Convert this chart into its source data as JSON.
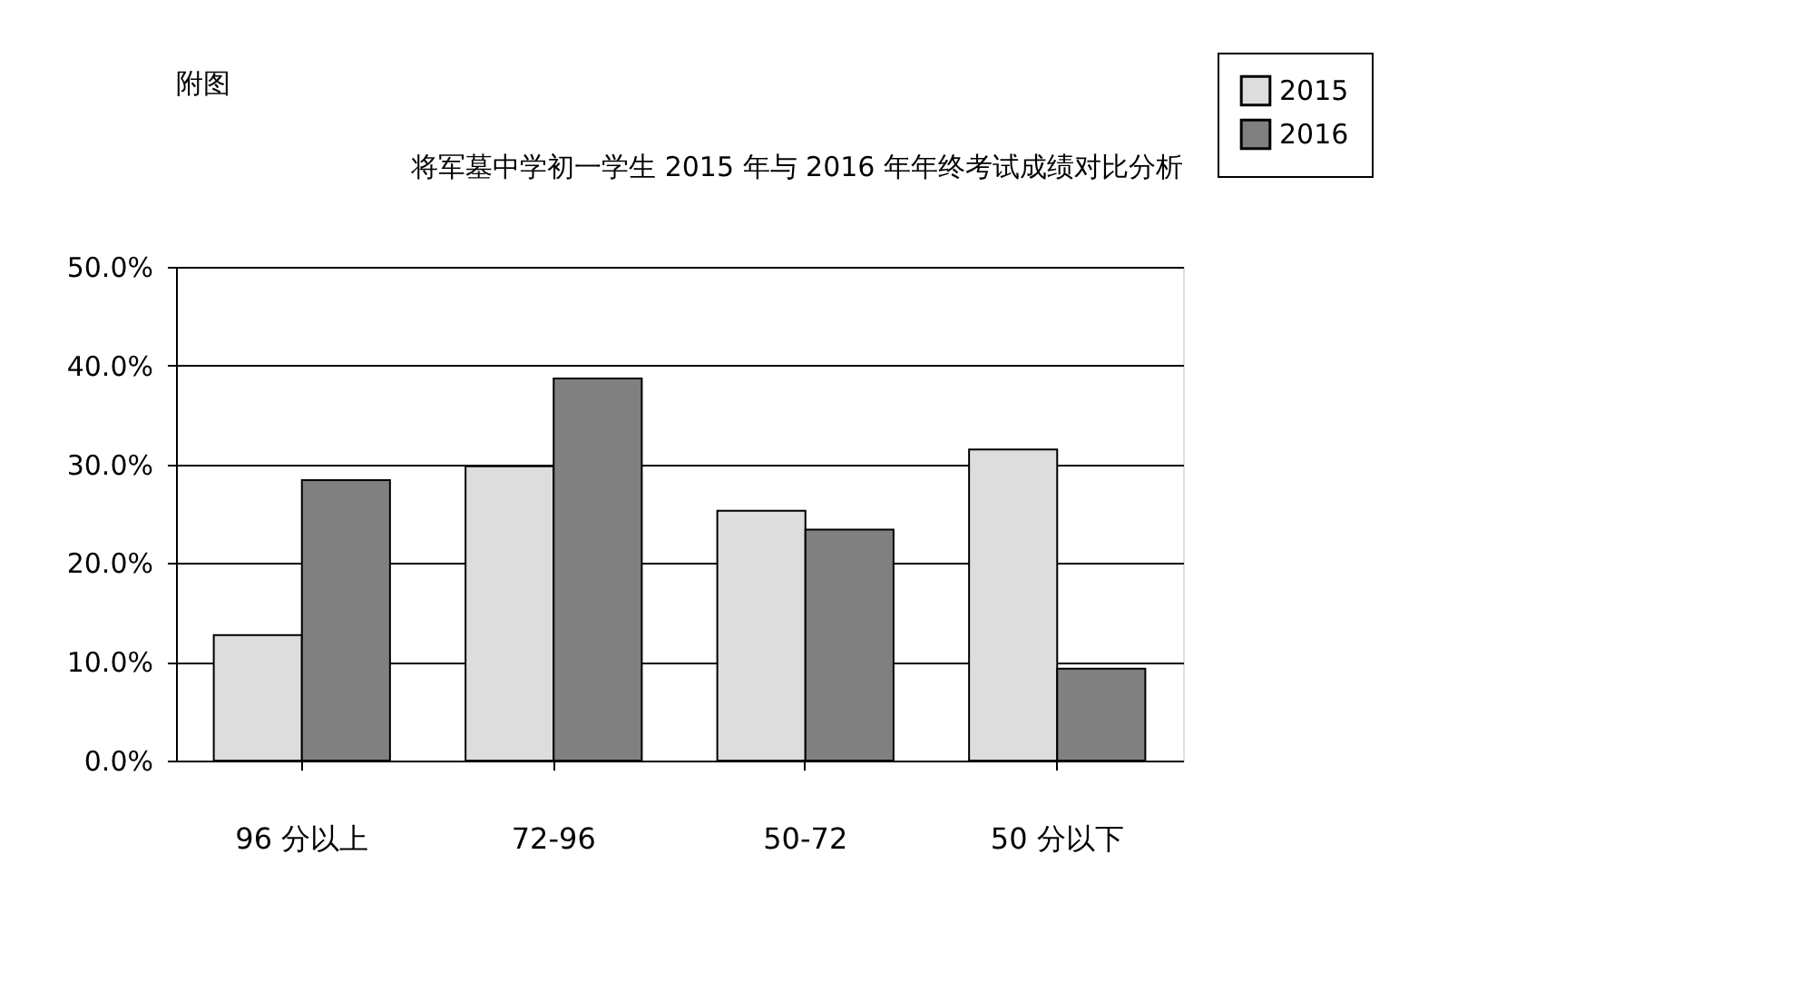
{
  "chart_data": {
    "type": "bar",
    "title": "将军墓中学初一学生 2015 年与 2016 年年终考试成绩对比分析",
    "annotations": [
      "附图"
    ],
    "categories": [
      "96 分以上",
      "72-96",
      "50-72",
      "50 分以下"
    ],
    "series": [
      {
        "name": "2015",
        "color": "#dddddd",
        "values": [
          12.7,
          29.8,
          25.3,
          31.5
        ]
      },
      {
        "name": "2016",
        "color": "#808080",
        "values": [
          28.4,
          38.7,
          23.4,
          9.3
        ]
      }
    ],
    "ylim": [
      0,
      50
    ],
    "yticks": [
      {
        "value": 0,
        "label": "0.0%"
      },
      {
        "value": 10,
        "label": "10.0%"
      },
      {
        "value": 20,
        "label": "20.0%"
      },
      {
        "value": 30,
        "label": "30.0%"
      },
      {
        "value": 40,
        "label": "40.0%"
      },
      {
        "value": 50,
        "label": "50.0%"
      }
    ],
    "grid": "y",
    "legend": "right"
  }
}
